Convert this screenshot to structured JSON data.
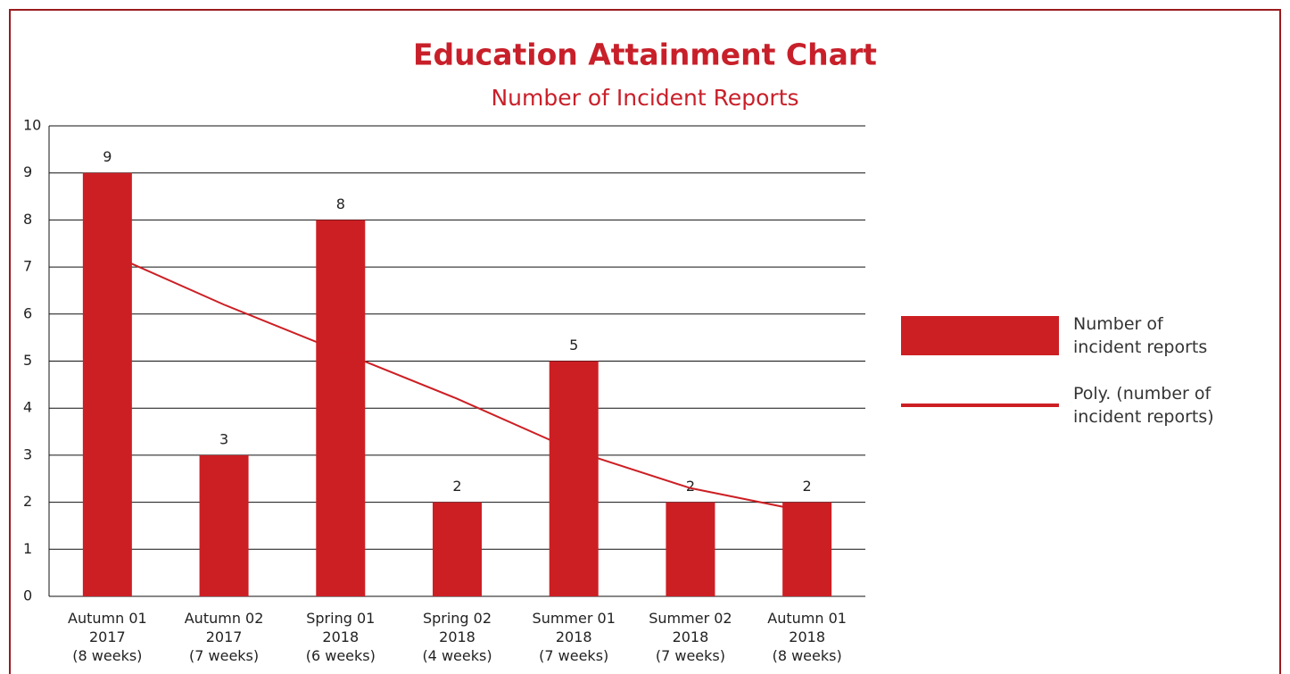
{
  "chart_data": {
    "type": "bar",
    "title": "Education Attainment Chart",
    "subtitle": "Number of Incident Reports",
    "categories": [
      "Autumn 01\n2017\n(8 weeks)",
      "Autumn 02\n2017\n(7 weeks)",
      "Spring 01\n2018\n(6 weeks)",
      "Spring 02\n2018\n(4 weeks)",
      "Summer 01\n2018\n(7 weeks)",
      "Summer 02\n2018\n(7 weeks)",
      "Autumn 01\n2018\n(8 weeks)"
    ],
    "series": [
      {
        "name": "Number of\nincident reports",
        "type": "bar",
        "color": "#cc1f24",
        "values": [
          9,
          3,
          8,
          2,
          5,
          2,
          2
        ]
      },
      {
        "name": "Poly. (number of\nincident reports)",
        "type": "line",
        "color": "#cc1f24",
        "values": [
          7.3,
          6.2,
          5.2,
          4.2,
          3.1,
          2.3,
          1.8
        ]
      }
    ],
    "ylim": [
      0,
      10
    ],
    "yticks": [
      0,
      1,
      2,
      3,
      4,
      5,
      6,
      7,
      8,
      9,
      10
    ],
    "grid": true,
    "legend": "right"
  }
}
